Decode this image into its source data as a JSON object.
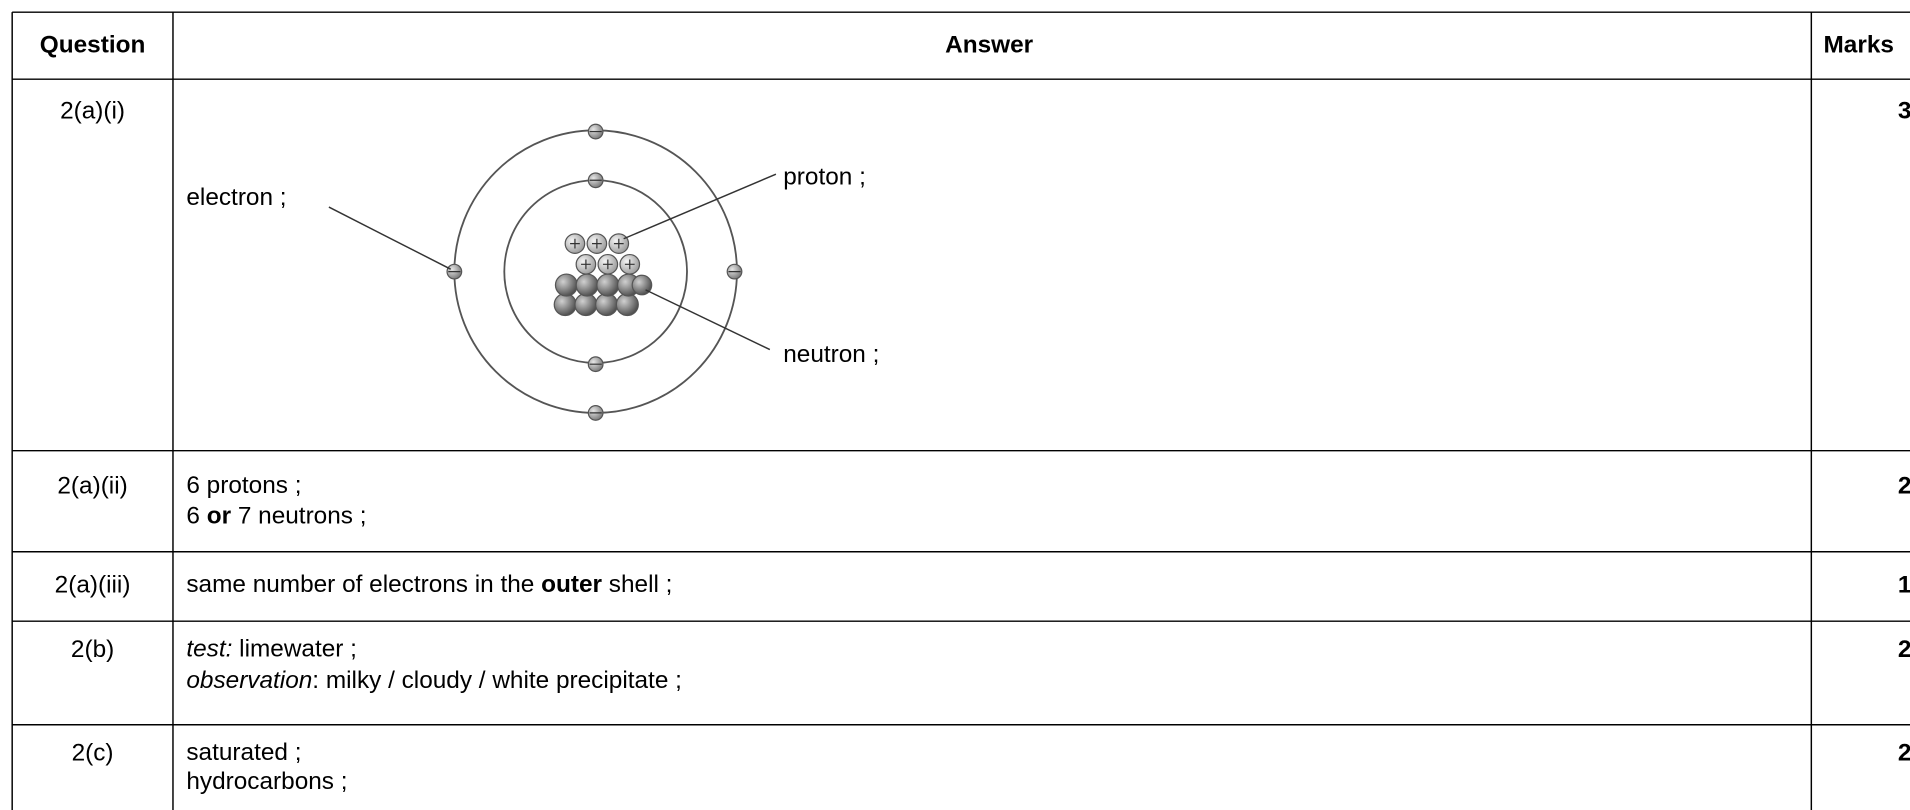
{
  "table": {
    "header": [
      "Question",
      "Answer",
      "Marks"
    ],
    "rows": [
      {
        "question": "2(a)(i)",
        "labels": [
          "electron ;",
          "proton ;",
          "neutron ;"
        ],
        "marks": 3
      },
      {
        "question": "2(a)(ii)",
        "answer": [
          [
            "6 protons ;"
          ],
          [
            "6 ",
            "or",
            " 7 neutrons ;"
          ]
        ],
        "marks": 2
      },
      {
        "question": "2(a)(iii)",
        "answer": [
          [
            "same number of electrons in the ",
            "outer",
            " shell ;"
          ]
        ],
        "marks": 1
      },
      {
        "question": "2(b)",
        "answer": [
          [
            "test:",
            " limewater ;"
          ],
          [
            "observation",
            ": milky / cloudy / white precipitate ;"
          ]
        ],
        "marks": 2
      },
      {
        "question": "2(c)",
        "answer": [
          [
            "saturated ;"
          ],
          [
            "hydrocarbons ;"
          ]
        ],
        "marks": 2
      }
    ]
  }
}
